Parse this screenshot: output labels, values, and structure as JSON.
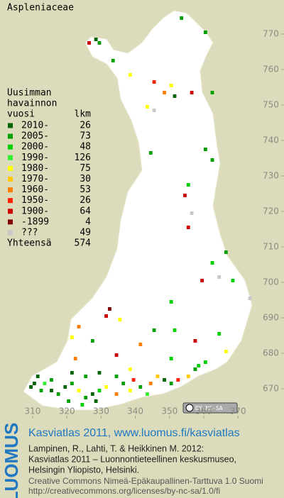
{
  "chart_data": {
    "type": "grid-map",
    "title": "Aspleniaceae",
    "legend_title": [
      "Uusimman",
      "havainnon",
      "vuosi"
    ],
    "count_header": "lkm",
    "xlim": [
      300.46,
      383.45
    ],
    "ylim": [
      661.6,
      779.6
    ],
    "xticks": [
      310,
      320,
      330,
      340,
      350,
      360,
      370
    ],
    "yticks": [
      670,
      680,
      690,
      700,
      710,
      720,
      730,
      740,
      750,
      760,
      770
    ],
    "series": [
      {
        "name": "2010-",
        "count": 26,
        "color": "#006400",
        "x": [
          328,
          351,
          309,
          310,
          315,
          319,
          327,
          348,
          321,
          329,
          311,
          328
        ],
        "y": [
          768,
          752,
          670,
          671,
          669,
          670,
          668,
          672,
          674,
          674,
          673,
          666
        ]
      },
      {
        "name": "2005-",
        "count": 73,
        "color": "#00a000",
        "x": [
          329,
          353,
          360,
          333,
          362,
          360,
          344,
          362,
          366,
          327,
          345,
          312,
          317,
          321,
          325,
          336,
          341,
          350,
          357,
          325,
          334,
          315,
          320
        ],
        "y": [
          767,
          774,
          770,
          762,
          753,
          737,
          736,
          734,
          708,
          683,
          686,
          669,
          668,
          671,
          667,
          671,
          670,
          671,
          675,
          673,
          673,
          672,
          666
        ]
      },
      {
        "name": "2000-",
        "count": 48,
        "color": "#00d000",
        "x": [
          355,
          362,
          368,
          350,
          351,
          364,
          350,
          358,
          329,
          360,
          324
        ],
        "y": [
          727,
          705,
          700,
          694,
          686,
          685,
          678,
          676,
          669,
          677,
          665
        ]
      },
      {
        "name": "1990-",
        "count": 126,
        "color": "#33ee33",
        "x": [
          313,
          343
        ],
        "y": [
          671,
          668
        ]
      },
      {
        "name": "1980-",
        "count": 75,
        "color": "#ffff00",
        "x": [
          338,
          350,
          343,
          335,
          321,
          366,
          323,
          331,
          338,
          338
        ],
        "y": [
          758,
          755,
          749,
          689,
          684,
          680,
          669,
          670,
          669,
          675
        ]
      },
      {
        "name": "1970-",
        "count": 30,
        "color": "#ffc800",
        "x": [
          346,
          355
        ],
        "y": [
          673,
          673
        ]
      },
      {
        "name": "1960-",
        "count": 53,
        "color": "#ff8000",
        "x": [
          348,
          323,
          341,
          322,
          334,
          344
        ],
        "y": [
          753,
          687,
          682,
          678,
          668,
          671
        ]
      },
      {
        "name": "1950-",
        "count": 26,
        "color": "#ff2000",
        "x": [
          345,
          339,
          352
        ],
        "y": [
          756,
          672,
          672
        ]
      },
      {
        "name": "1900-",
        "count": 64,
        "color": "#cc0000",
        "x": [
          326,
          356,
          354,
          355,
          359,
          331,
          357,
          334
        ],
        "y": [
          767,
          753,
          724,
          715,
          700,
          690,
          683,
          679
        ]
      },
      {
        "name": "-1899",
        "count": 4,
        "color": "#800000",
        "x": [
          332
        ],
        "y": [
          692
        ]
      },
      {
        "name": "???",
        "count": 49,
        "color": "#c8c8c8",
        "x": [
          345,
          356,
          364,
          373
        ],
        "y": [
          748,
          719,
          701,
          695
        ]
      }
    ],
    "total_label": "Yhteensä",
    "total": 574,
    "license_badge": "BY-NC-SA"
  },
  "footer": {
    "logo": "LUOMUS",
    "heading": "Kasviatlas 2011, www.luomus.fi/kasviatlas",
    "citation": [
      "Lampinen, R., Lahti, T. & Heikkinen M. 2012:",
      "Kasviatlas 2011 – Luonnontieteellinen keskusmuseo,",
      "Helsingin Yliopisto, Helsinki."
    ],
    "license": [
      "Creative Commons Nimeä-Epäkaupallinen-Tarttuva 1.0 Suomi",
      "http://creativecommons.org/licenses/by-nc-sa/1.0/fi"
    ]
  }
}
